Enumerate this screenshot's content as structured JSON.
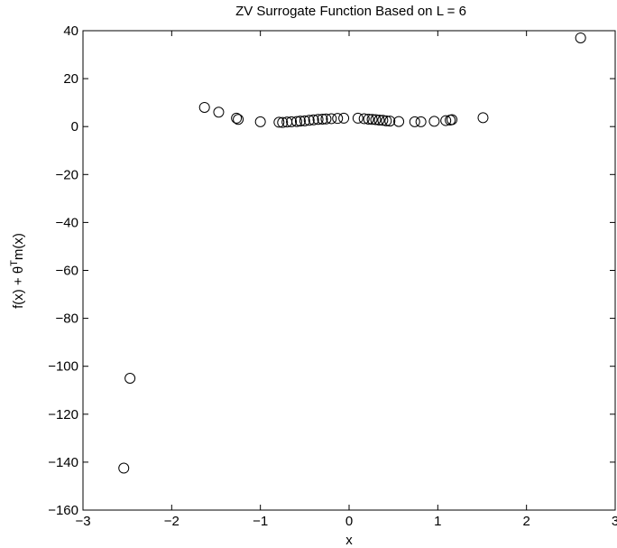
{
  "chart_data": {
    "type": "scatter",
    "title": "ZV Surrogate Function Based on L = 6",
    "xlabel": "x",
    "ylabel": "f(x) + θᵀm(x)",
    "ylabel_parts": {
      "pre": "f(x) + ",
      "theta": "θ",
      "sup": "T",
      "post": "m(x)"
    },
    "xlim": [
      -3,
      3
    ],
    "ylim": [
      -160,
      40
    ],
    "x_ticks": [
      -3,
      -2,
      -1,
      0,
      1,
      2,
      3
    ],
    "y_ticks": [
      -160,
      -140,
      -120,
      -100,
      -80,
      -60,
      -40,
      -20,
      0,
      20,
      40
    ],
    "x_tick_labels": [
      "−3",
      "−2",
      "−1",
      "0",
      "1",
      "2",
      "3"
    ],
    "y_tick_labels": [
      "−160",
      "−140",
      "−120",
      "−100",
      "−80",
      "−60",
      "−40",
      "−20",
      "0",
      "20",
      "40"
    ],
    "grid": false,
    "marker": "open-circle",
    "marker_color": "#000000",
    "points": [
      {
        "x": -2.54,
        "y": -142.5
      },
      {
        "x": -2.47,
        "y": -105.0
      },
      {
        "x": -1.63,
        "y": 8.0
      },
      {
        "x": -1.47,
        "y": 6.0
      },
      {
        "x": -1.27,
        "y": 3.5
      },
      {
        "x": -1.25,
        "y": 3.0
      },
      {
        "x": -1.0,
        "y": 2.0
      },
      {
        "x": -0.79,
        "y": 1.8
      },
      {
        "x": -0.75,
        "y": 1.7
      },
      {
        "x": -0.7,
        "y": 1.9
      },
      {
        "x": -0.65,
        "y": 2.0
      },
      {
        "x": -0.59,
        "y": 2.1
      },
      {
        "x": -0.55,
        "y": 2.3
      },
      {
        "x": -0.5,
        "y": 2.4
      },
      {
        "x": -0.45,
        "y": 2.6
      },
      {
        "x": -0.4,
        "y": 2.8
      },
      {
        "x": -0.35,
        "y": 3.0
      },
      {
        "x": -0.3,
        "y": 3.1
      },
      {
        "x": -0.26,
        "y": 3.2
      },
      {
        "x": -0.2,
        "y": 3.3
      },
      {
        "x": -0.13,
        "y": 3.4
      },
      {
        "x": -0.06,
        "y": 3.5
      },
      {
        "x": 0.1,
        "y": 3.5
      },
      {
        "x": 0.17,
        "y": 3.3
      },
      {
        "x": 0.22,
        "y": 3.1
      },
      {
        "x": 0.26,
        "y": 3.0
      },
      {
        "x": 0.3,
        "y": 2.9
      },
      {
        "x": 0.34,
        "y": 2.7
      },
      {
        "x": 0.38,
        "y": 2.6
      },
      {
        "x": 0.42,
        "y": 2.4
      },
      {
        "x": 0.46,
        "y": 2.3
      },
      {
        "x": 0.56,
        "y": 2.1
      },
      {
        "x": 0.74,
        "y": 2.0
      },
      {
        "x": 0.81,
        "y": 2.0
      },
      {
        "x": 0.96,
        "y": 2.2
      },
      {
        "x": 1.09,
        "y": 2.5
      },
      {
        "x": 1.14,
        "y": 2.7
      },
      {
        "x": 1.16,
        "y": 2.9
      },
      {
        "x": 1.51,
        "y": 3.7
      },
      {
        "x": 2.61,
        "y": 37.0
      }
    ]
  }
}
